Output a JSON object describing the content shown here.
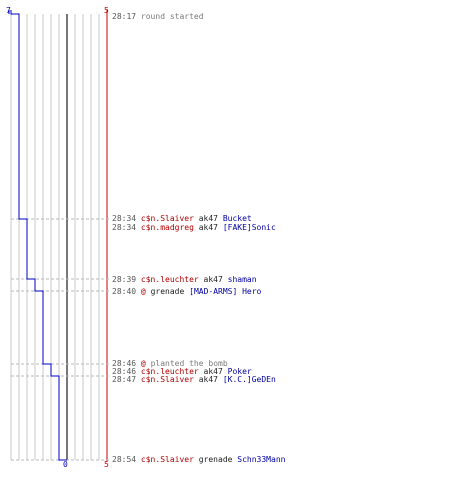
{
  "chart_data": {
    "type": "line",
    "title": "",
    "xlabel": "",
    "ylabel": "",
    "team_left": {
      "label_top": "7",
      "label_bottom": "0",
      "color": "#0000c0"
    },
    "team_right": {
      "label_top": "5",
      "label_bottom": "5",
      "color": "#cc0000"
    },
    "players_alive": {
      "times": [
        "28:17",
        "28:34",
        "28:39",
        "28:40",
        "28:46",
        "28:47",
        "28:54"
      ],
      "values": [
        7,
        6,
        5,
        4,
        3,
        2,
        1
      ]
    },
    "grid": true
  },
  "events": [
    {
      "time": "28:17",
      "message": "round started"
    },
    {
      "time": "28:34",
      "killer": "c$n.Slaiver",
      "weapon": "ak47",
      "victim": "Bucket"
    },
    {
      "time": "28:34",
      "killer": "c$n.madgreg",
      "weapon": "ak47",
      "victim": "[FAKE]Sonic"
    },
    {
      "time": "28:39",
      "killer": "c$n.leuchter",
      "weapon": "ak47",
      "victim": "shaman"
    },
    {
      "time": "28:40",
      "killer": "@",
      "weapon": "grenade",
      "victim": "[MAD-ARMS] Hero"
    },
    {
      "time": "28:46",
      "killer": "@",
      "message": "planted the bomb"
    },
    {
      "time": "28:46",
      "killer": "c$n.leuchter",
      "weapon": "ak47",
      "victim": "Poker"
    },
    {
      "time": "28:47",
      "killer": "c$n.Slaiver",
      "weapon": "ak47",
      "victim": "[K.C.]GeDEn"
    },
    {
      "time": "28:54",
      "killer": "c$n.Slaiver",
      "weapon": "grenade",
      "victim": "Schn33Mann"
    }
  ]
}
